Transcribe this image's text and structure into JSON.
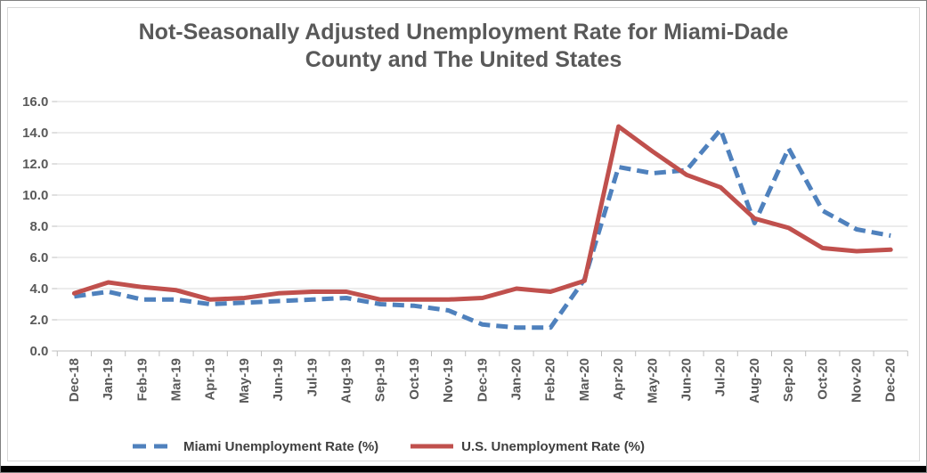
{
  "chart_data": {
    "type": "line",
    "title": "Not-Seasonally Adjusted Unemployment Rate for Miami-Dade\nCounty and The United States",
    "categories": [
      "Dec-18",
      "Jan-19",
      "Feb-19",
      "Mar-19",
      "Apr-19",
      "May-19",
      "Jun-19",
      "Jul-19",
      "Aug-19",
      "Sep-19",
      "Oct-19",
      "Nov-19",
      "Dec-19",
      "Jan-20",
      "Feb-20",
      "Mar-20",
      "Apr-20",
      "May-20",
      "Jun-20",
      "Jul-20",
      "Aug-20",
      "Sep-20",
      "Oct-20",
      "Nov-20",
      "Dec-20"
    ],
    "series": [
      {
        "name": "Miami Unemployment Rate (%)",
        "color": "#4F81BD",
        "line_style": "dashed",
        "values": [
          3.5,
          3.8,
          3.3,
          3.3,
          3.0,
          3.1,
          3.2,
          3.3,
          3.4,
          3.0,
          2.9,
          2.6,
          1.7,
          1.5,
          1.5,
          4.6,
          11.8,
          11.4,
          11.6,
          14.2,
          8.2,
          13.0,
          9.0,
          7.8,
          7.4
        ]
      },
      {
        "name": "U.S. Unemployment Rate (%)",
        "color": "#C0504D",
        "line_style": "solid",
        "values": [
          3.7,
          4.4,
          4.1,
          3.9,
          3.3,
          3.4,
          3.7,
          3.8,
          3.8,
          3.3,
          3.3,
          3.3,
          3.4,
          4.0,
          3.8,
          4.5,
          14.4,
          12.8,
          11.3,
          10.5,
          8.5,
          7.9,
          6.6,
          6.4,
          6.5
        ]
      }
    ],
    "ylim": [
      0,
      16
    ],
    "ytick_step": 2,
    "ytick_labels": [
      "0.0",
      "2.0",
      "4.0",
      "6.0",
      "8.0",
      "10.0",
      "12.0",
      "14.0",
      "16.0"
    ],
    "xlabel": "",
    "ylabel": "",
    "grid": true,
    "legend_position": "bottom",
    "grid_color": "#D9D9D9",
    "axis_color": "#BFBFBF",
    "title_color": "#595959"
  }
}
